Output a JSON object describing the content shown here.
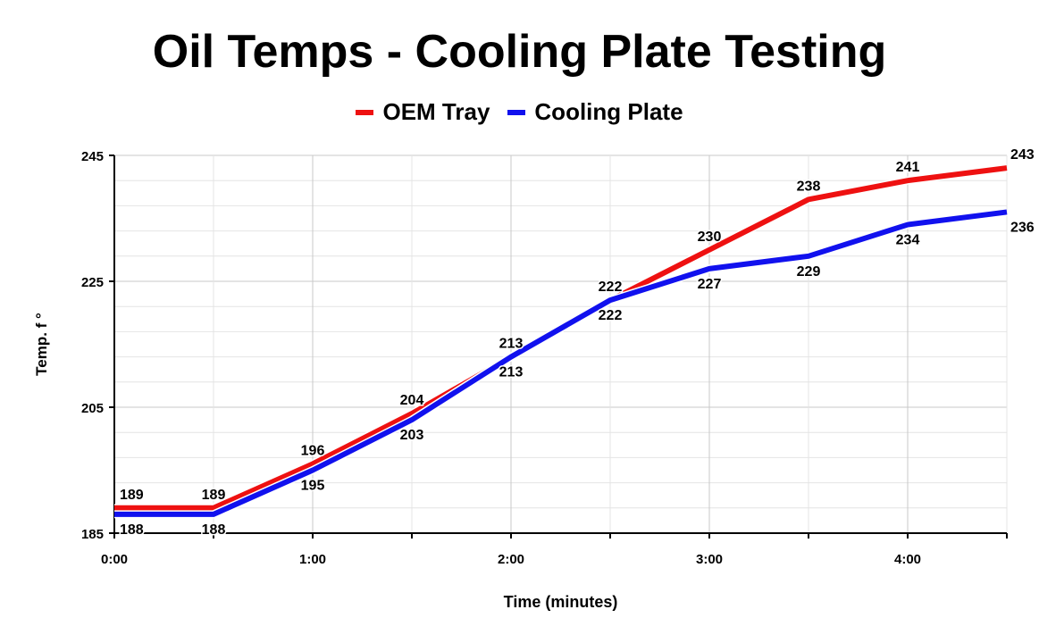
{
  "chart_data": {
    "type": "line",
    "title": "Oil Temps - Cooling Plate Testing",
    "xlabel": "Time (minutes)",
    "ylabel": "Temp. f °",
    "x": [
      "0:00",
      "0:30",
      "1:00",
      "1:30",
      "2:00",
      "2:30",
      "3:00",
      "3:30",
      "4:00",
      "4:30"
    ],
    "x_tick_labels": [
      "0:00",
      "1:00",
      "2:00",
      "3:00",
      "4:00"
    ],
    "y_ticks": [
      185,
      205,
      225,
      245
    ],
    "ylim": [
      185,
      245
    ],
    "grid": true,
    "legend": "top",
    "series": [
      {
        "name": "OEM Tray",
        "color": "#ee1111",
        "values": [
          189,
          189,
          196,
          204,
          213,
          222,
          230,
          238,
          241,
          243
        ]
      },
      {
        "name": "Cooling Plate",
        "color": "#1111ee",
        "values": [
          188,
          188,
          195,
          203,
          213,
          222,
          227,
          229,
          234,
          236
        ]
      }
    ]
  }
}
